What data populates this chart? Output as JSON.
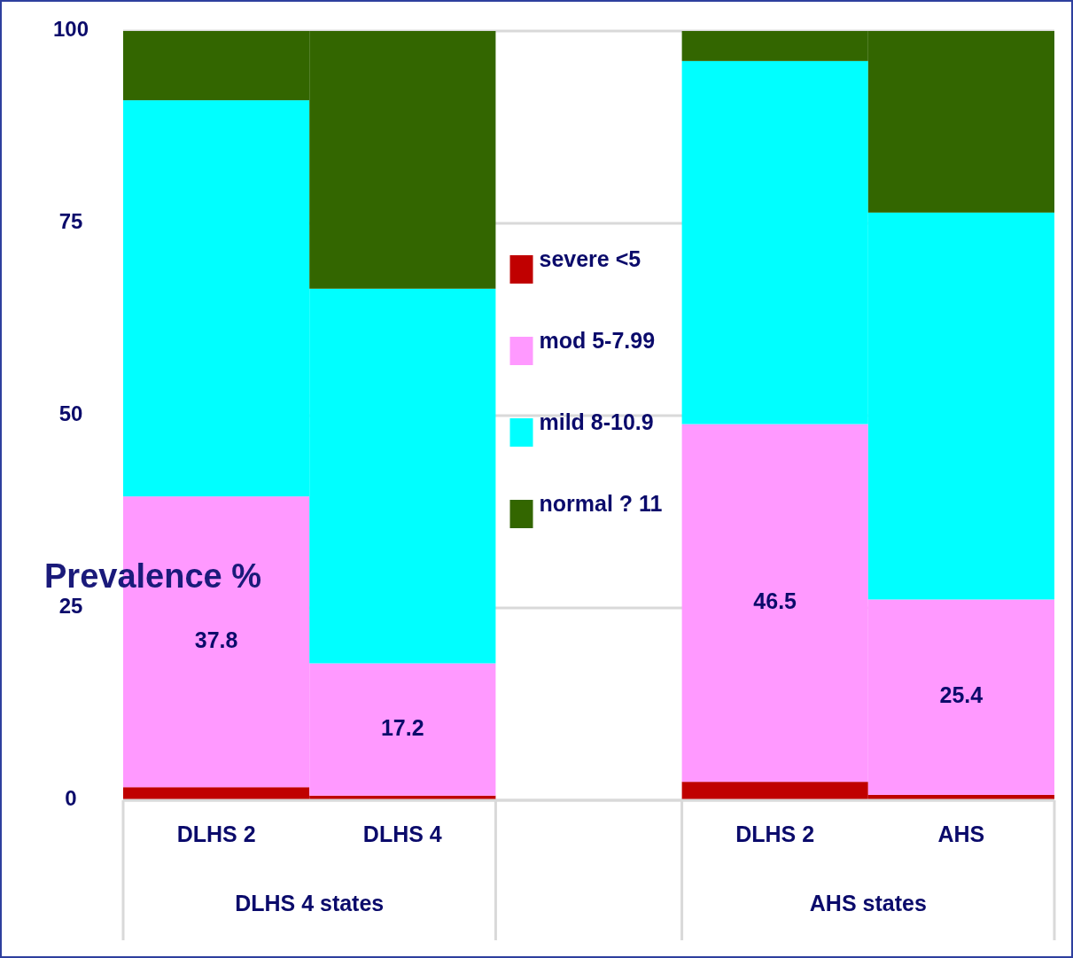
{
  "chart_data": {
    "type": "bar",
    "stacked": true,
    "ylabel": "Prevalence %",
    "categories": [
      "DLHS 2",
      "DLHS 4",
      null,
      "DLHS 2",
      "AHS"
    ],
    "series": [
      {
        "name": "severe <5",
        "color": "#c00000",
        "values": [
          1.7,
          0.6,
          null,
          2.4,
          0.7
        ]
      },
      {
        "name": "mod 5-7.99",
        "color": "#ff99ff",
        "values": [
          37.8,
          17.2,
          null,
          46.5,
          25.4
        ],
        "value_labels": [
          "37.8",
          "17.2",
          null,
          "46.5",
          "25.4"
        ]
      },
      {
        "name": "mild 8-10.9",
        "color": "#00ffff",
        "values": [
          51.5,
          48.7,
          null,
          47.2,
          50.3
        ]
      },
      {
        "name": "normal ? 11",
        "color": "#336600",
        "values": [
          9.0,
          33.5,
          null,
          3.9,
          23.6
        ]
      }
    ],
    "annotations": [
      "DLHS 4 states",
      "AHS states"
    ],
    "ylim": [
      0,
      100
    ],
    "yticks": [
      0,
      25,
      50,
      75,
      100
    ],
    "grid": "y",
    "legend": "center"
  }
}
